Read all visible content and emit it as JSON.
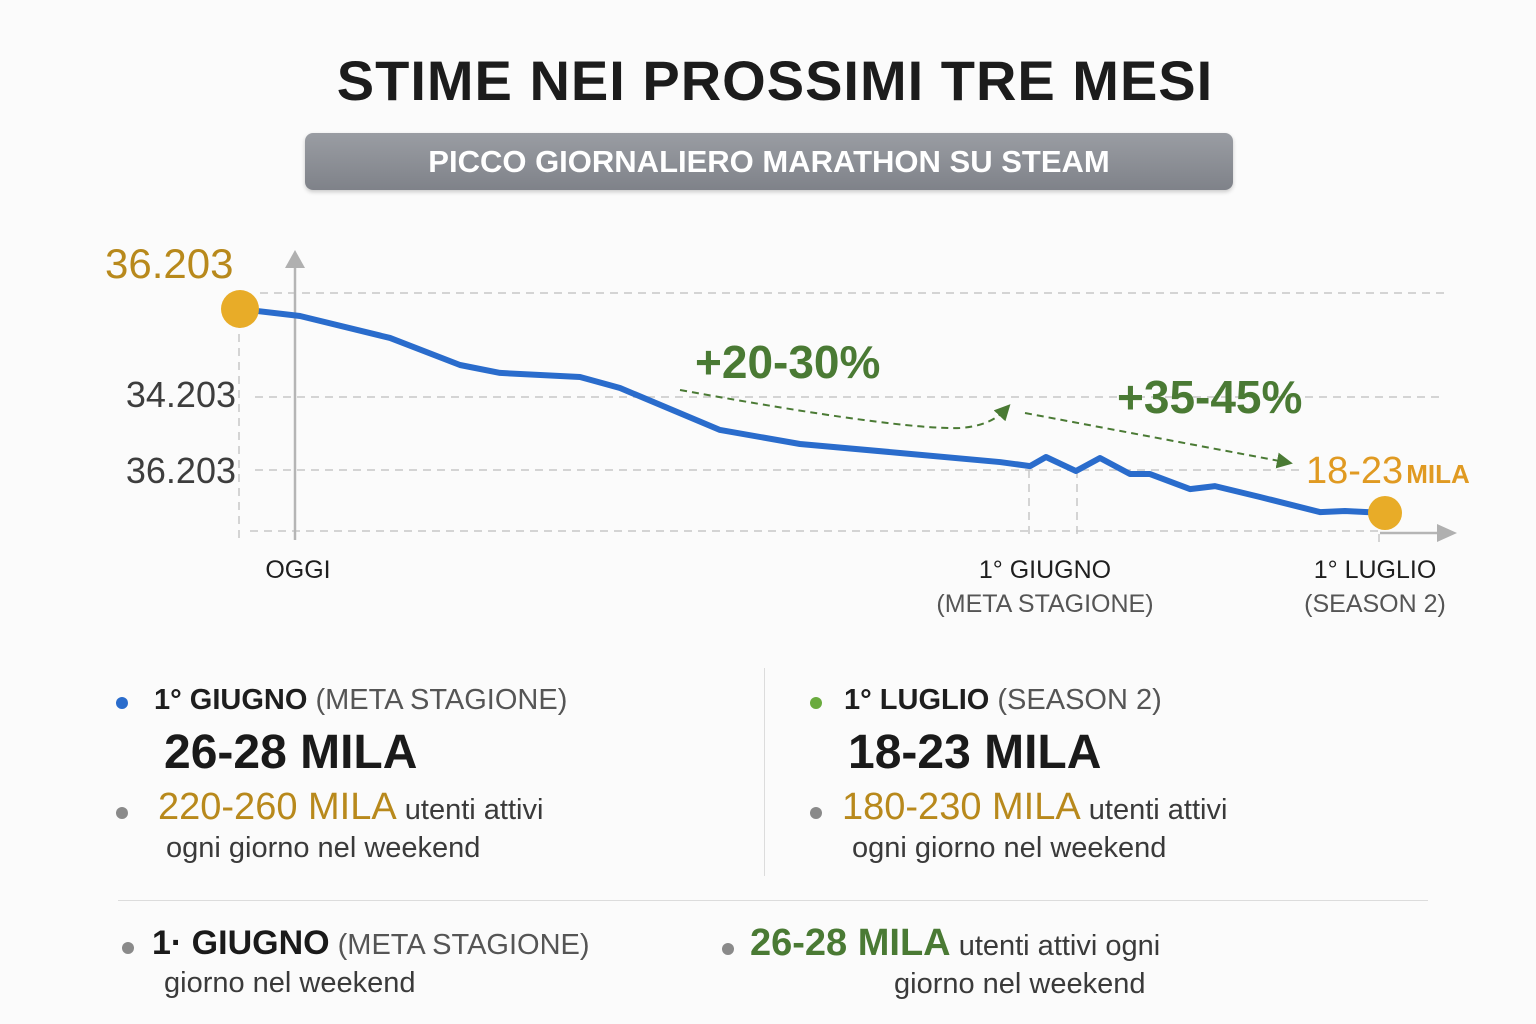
{
  "header": {
    "title": "STIME NEI PROSSIMI TRE MESI",
    "subtitle": "PICCO GIORNALIERO MARATHON SU STEAM"
  },
  "chart_data": {
    "type": "line",
    "title": "STIME NEI PROSSIMI TRE MESI",
    "subtitle": "PICCO GIORNALIERO MARATHON SU STEAM",
    "y_tick_labels": [
      "34.203",
      "36.203"
    ],
    "start_label": "36.203",
    "end_label": {
      "value": "18-23",
      "unit": "MILA"
    },
    "x_labels": [
      {
        "main": "OGGI",
        "sub": ""
      },
      {
        "main": "1° GIUGNO",
        "sub": "(META STAGIONE)"
      },
      {
        "main": "1° LUGLIO",
        "sub": "(SEASON 2)"
      }
    ],
    "series": [
      {
        "color": "#2a6ccc",
        "values": [
          36200,
          35660,
          33970,
          31890,
          31280,
          30970,
          30120,
          26890,
          25810,
          25120,
          24420,
          24110,
          24810,
          23730,
          24730,
          23500,
          23500,
          22340,
          22570,
          21730,
          20570,
          20650,
          20500
        ]
      }
    ],
    "annotations": [
      {
        "text": "+20-30%",
        "color": "#4a7a34"
      },
      {
        "text": "+35-45%",
        "color": "#4a7a34"
      }
    ],
    "marker_color": "#e8ac28",
    "grid": true
  },
  "cards": [
    {
      "dot_color": "#2a6ccc",
      "date": "1° GIUGNO",
      "note": "(META STAGIONE)",
      "big": "26-28 MILA",
      "range": "220-260 MILA",
      "text1": "utenti attivi",
      "text2": "ogni giorno nel weekend"
    },
    {
      "dot_color": "#6aab3e",
      "date": "1° LUGLIO",
      "note": "(SEASON 2)",
      "big": "18-23 MILA",
      "range": "180-230 MILA",
      "text1": "utenti attivi",
      "text2": "ogni giorno nel weekend"
    }
  ],
  "footer": {
    "date": "1· GIUGNO",
    "note": "(META STAGIONE)",
    "text_left": "giorno nel weekend",
    "range": "26-28 MILA",
    "text1": "utenti attivi ogni",
    "text2": "giorno nel weekend"
  }
}
